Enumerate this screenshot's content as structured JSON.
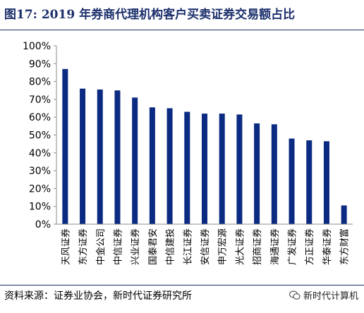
{
  "title": "图17:  2019 年券商代理机构客户买卖证券交易额占比",
  "source": "资料来源：证券业协会，新时代证券研究所",
  "watermark": "新时代计算机",
  "colors": {
    "bar": "#0b2a82",
    "title": "#1b2f6b",
    "axis": "#8c8c8c"
  },
  "chart_data": {
    "type": "bar",
    "title": "图17:  2019 年券商代理机构客户买卖证券交易额占比",
    "categories": [
      "天风证券",
      "东方证券",
      "中金公司",
      "中信证券",
      "兴业证券",
      "国泰君安",
      "中信建投",
      "长江证券",
      "安信证券",
      "申万宏源",
      "光大证券",
      "招商证券",
      "海通证券",
      "广发证券",
      "方正证券",
      "华泰证券",
      "东方财富"
    ],
    "values": [
      87,
      76,
      75.5,
      75,
      71,
      65.5,
      65,
      63,
      62,
      62,
      61.5,
      56.5,
      56,
      48,
      47,
      46.5,
      10.5
    ],
    "ylim": [
      0,
      100
    ],
    "yticks": [
      "0%",
      "10%",
      "20%",
      "30%",
      "40%",
      "50%",
      "60%",
      "70%",
      "80%",
      "90%",
      "100%"
    ],
    "y_unit": "%",
    "grid": false,
    "legend": "none"
  }
}
